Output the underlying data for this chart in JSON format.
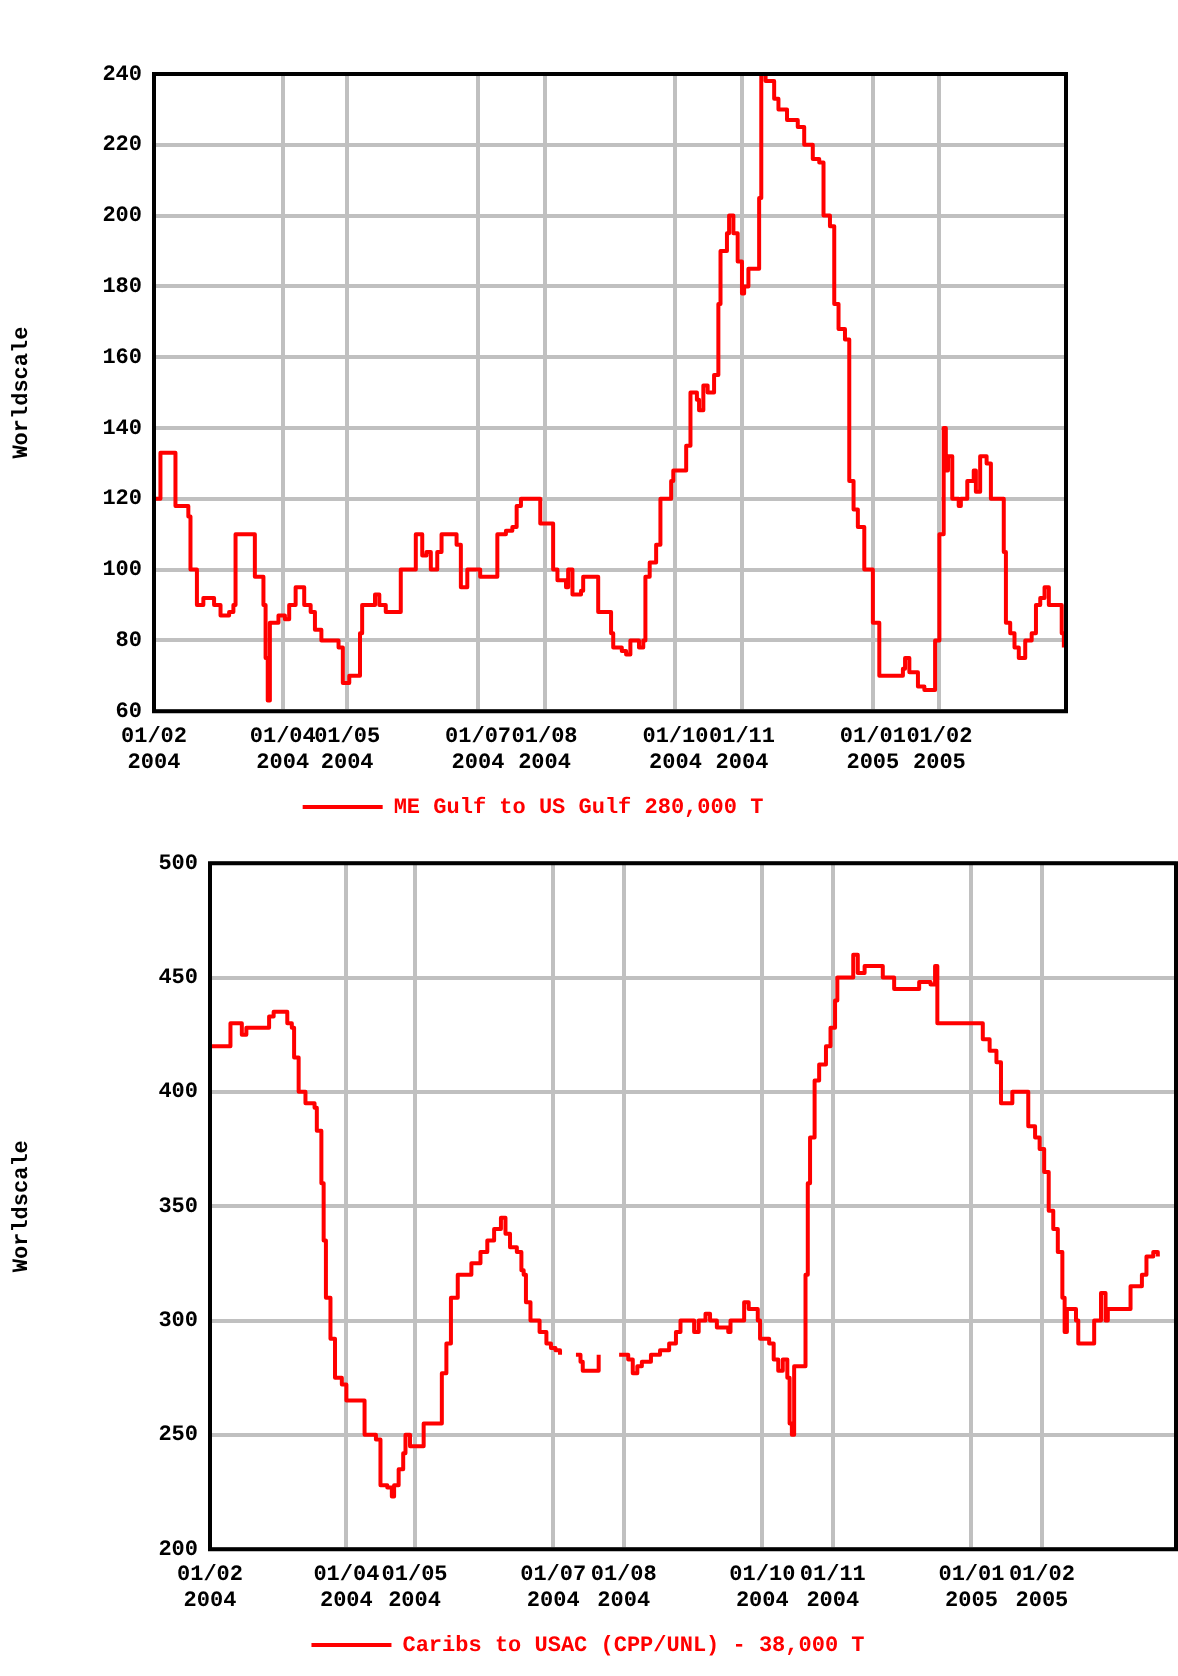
{
  "chart_data": [
    {
      "type": "step",
      "ylabel": "Worldscale",
      "legend": "bottom",
      "grid": true,
      "xlim": [
        "2004-02-01",
        "2005-04-01"
      ],
      "ylim": [
        60,
        240
      ],
      "yticks": [
        60,
        80,
        100,
        120,
        140,
        160,
        180,
        200,
        220,
        240
      ],
      "xticks": [
        {
          "value": "2004-02-01",
          "label": "01/02 2004"
        },
        {
          "value": "2004-04-01",
          "label": "01/04 2004"
        },
        {
          "value": "2004-05-01",
          "label": "01/05 2004"
        },
        {
          "value": "2004-07-01",
          "label": "01/07 2004"
        },
        {
          "value": "2004-08-01",
          "label": "01/08 2004"
        },
        {
          "value": "2004-10-01",
          "label": "01/10 2004"
        },
        {
          "value": "2004-11-01",
          "label": "01/11 2004"
        },
        {
          "value": "2005-01-01",
          "label": "01/01 2005"
        },
        {
          "value": "2005-02-01",
          "label": "01/02 2005"
        }
      ],
      "x": [
        "2004-02-01",
        "2004-02-04",
        "2004-02-11",
        "2004-02-17",
        "2004-02-18",
        "2004-02-21",
        "2004-02-24",
        "2004-02-29",
        "2004-03-03",
        "2004-03-07",
        "2004-03-09",
        "2004-03-10",
        "2004-03-17",
        "2004-03-19",
        "2004-03-23",
        "2004-03-24",
        "2004-03-25",
        "2004-03-26",
        "2004-03-30",
        "2004-04-02",
        "2004-04-04",
        "2004-04-07",
        "2004-04-11",
        "2004-04-14",
        "2004-04-16",
        "2004-04-19",
        "2004-04-25",
        "2004-04-27",
        "2004-04-29",
        "2004-05-02",
        "2004-05-06",
        "2004-05-07",
        "2004-05-08",
        "2004-05-12",
        "2004-05-14",
        "2004-05-16",
        "2004-05-19",
        "2004-05-24",
        "2004-05-26",
        "2004-05-31",
        "2004-06-02",
        "2004-06-05",
        "2004-06-07",
        "2004-06-09",
        "2004-06-12",
        "2004-06-14",
        "2004-06-18",
        "2004-06-21",
        "2004-06-23",
        "2004-06-26",
        "2004-07-01",
        "2004-07-02",
        "2004-07-08",
        "2004-07-10",
        "2004-07-14",
        "2004-07-17",
        "2004-07-19",
        "2004-07-21",
        "2004-07-27",
        "2004-07-30",
        "2004-08-03",
        "2004-08-05",
        "2004-08-07",
        "2004-08-11",
        "2004-08-12",
        "2004-08-14",
        "2004-08-18",
        "2004-08-19",
        "2004-08-24",
        "2004-08-26",
        "2004-08-30",
        "2004-09-01",
        "2004-09-02",
        "2004-09-06",
        "2004-09-08",
        "2004-09-10",
        "2004-09-14",
        "2004-09-16",
        "2004-09-17",
        "2004-09-19",
        "2004-09-22",
        "2004-09-24",
        "2004-09-29",
        "2004-09-30",
        "2004-10-05",
        "2004-10-06",
        "2004-10-08",
        "2004-10-11",
        "2004-10-12",
        "2004-10-14",
        "2004-10-16",
        "2004-10-19",
        "2004-10-21",
        "2004-10-22",
        "2004-10-24",
        "2004-10-25",
        "2004-10-26",
        "2004-10-28",
        "2004-10-30",
        "2004-11-01",
        "2004-11-02",
        "2004-11-04",
        "2004-11-08",
        "2004-11-09",
        "2004-11-10",
        "2004-11-12",
        "2004-11-16",
        "2004-11-18",
        "2004-11-22",
        "2004-11-27",
        "2004-11-30",
        "2004-12-04",
        "2004-12-07",
        "2004-12-09",
        "2004-12-12",
        "2004-12-14",
        "2004-12-16",
        "2004-12-19",
        "2004-12-21",
        "2004-12-23",
        "2004-12-25",
        "2004-12-28",
        "2005-01-01",
        "2005-01-04",
        "2005-01-11",
        "2005-01-15",
        "2005-01-16",
        "2005-01-18",
        "2005-01-22",
        "2005-01-25",
        "2005-01-28",
        "2005-01-30",
        "2005-02-01",
        "2005-02-03",
        "2005-02-04",
        "2005-02-05",
        "2005-02-07",
        "2005-02-10",
        "2005-02-11",
        "2005-02-14",
        "2005-02-17",
        "2005-02-18",
        "2005-02-20",
        "2005-02-23",
        "2005-02-25",
        "2005-03-01",
        "2005-03-03",
        "2005-03-04",
        "2005-03-06",
        "2005-03-08",
        "2005-03-10",
        "2005-03-13",
        "2005-03-16",
        "2005-03-18",
        "2005-03-20",
        "2005-03-22",
        "2005-03-24",
        "2005-03-29",
        "2005-03-30",
        "2005-03-31"
      ],
      "series": [
        {
          "name": "ME Gulf to US Gulf 280,000 T",
          "color": "#ff0000",
          "values": [
            120,
            133,
            118,
            115,
            100,
            90,
            92,
            90,
            87,
            88,
            90,
            110,
            110,
            98,
            90,
            75,
            63,
            85,
            87,
            86,
            90,
            95,
            90,
            88,
            83,
            80,
            80,
            78,
            68,
            70,
            70,
            82,
            90,
            90,
            93,
            90,
            88,
            88,
            100,
            100,
            110,
            104,
            105,
            100,
            105,
            110,
            110,
            107,
            95,
            100,
            100,
            98,
            98,
            110,
            111,
            112,
            118,
            120,
            120,
            113,
            113,
            100,
            97,
            95,
            100,
            93,
            94,
            98,
            98,
            88,
            88,
            82,
            78,
            77,
            76,
            80,
            78,
            80,
            98,
            102,
            107,
            120,
            125,
            128,
            128,
            135,
            150,
            148,
            145,
            152,
            150,
            155,
            175,
            190,
            190,
            195,
            200,
            195,
            187,
            178,
            180,
            185,
            185,
            205,
            240,
            238,
            233,
            230,
            227,
            225,
            220,
            216,
            215,
            200,
            197,
            175,
            168,
            165,
            125,
            117,
            112,
            100,
            85,
            70,
            70,
            72,
            75,
            71,
            67,
            66,
            66,
            80,
            110,
            140,
            128,
            132,
            120,
            118,
            120,
            125,
            128,
            122,
            132,
            130,
            120,
            120,
            105,
            85,
            82,
            78,
            75,
            80,
            82,
            90,
            92,
            95,
            90,
            90,
            82,
            78
          ]
        }
      ]
    },
    {
      "type": "step",
      "ylabel": "Worldscale",
      "legend": "bottom",
      "grid": true,
      "xlim": [
        "2004-02-01",
        "2005-04-01"
      ],
      "ylim": [
        200,
        500
      ],
      "yticks": [
        200,
        250,
        300,
        350,
        400,
        450,
        500
      ],
      "xticks": [
        {
          "value": "2004-02-01",
          "label": "01/02 2004"
        },
        {
          "value": "2004-04-01",
          "label": "01/04 2004"
        },
        {
          "value": "2004-05-01",
          "label": "01/05 2004"
        },
        {
          "value": "2004-07-01",
          "label": "01/07 2004"
        },
        {
          "value": "2004-08-01",
          "label": "01/08 2004"
        },
        {
          "value": "2004-10-01",
          "label": "01/10 2004"
        },
        {
          "value": "2004-11-01",
          "label": "01/11 2004"
        },
        {
          "value": "2005-01-01",
          "label": "01/01 2005"
        },
        {
          "value": "2005-02-01",
          "label": "01/02 2005"
        }
      ],
      "x": [
        "2004-02-01",
        "2004-02-09",
        "2004-02-10",
        "2004-02-13",
        "2004-02-15",
        "2004-02-17",
        "2004-02-21",
        "2004-02-25",
        "2004-02-27",
        "2004-02-29",
        "2004-03-04",
        "2004-03-06",
        "2004-03-08",
        "2004-03-09",
        "2004-03-11",
        "2004-03-14",
        "2004-03-18",
        "2004-03-19",
        "2004-03-21",
        "2004-03-22",
        "2004-03-23",
        "2004-03-25",
        "2004-03-27",
        "2004-03-30",
        "2004-04-01",
        "2004-04-08",
        "2004-04-09",
        "2004-04-14",
        "2004-04-16",
        "2004-04-19",
        "2004-04-21",
        "2004-04-22",
        "2004-04-24",
        "2004-04-26",
        "2004-04-27",
        "2004-04-29",
        "2004-05-04",
        "2004-05-05",
        "2004-05-12",
        "2004-05-13",
        "2004-05-15",
        "2004-05-17",
        "2004-05-20",
        "2004-05-25",
        "2004-05-26",
        "2004-05-30",
        "2004-06-02",
        "2004-06-05",
        "2004-06-08",
        "2004-06-10",
        "2004-06-12",
        "2004-06-15",
        "2004-06-17",
        "2004-06-18",
        "2004-06-19",
        "2004-06-21",
        "2004-06-25",
        "2004-06-28",
        "2004-06-30",
        "2004-07-02",
        "2004-07-04",
        "2004-07-08",
        "2004-07-11",
        "2004-07-13",
        "2004-07-14",
        "2004-07-19",
        "2004-07-21",
        "2004-07-25",
        "2004-07-30",
        "2004-08-03",
        "2004-08-05",
        "2004-08-07",
        "2004-08-09",
        "2004-08-13",
        "2004-08-17",
        "2004-08-21",
        "2004-08-24",
        "2004-08-26",
        "2004-08-30",
        "2004-09-01",
        "2004-09-03",
        "2004-09-06",
        "2004-09-08",
        "2004-09-11",
        "2004-09-16",
        "2004-09-17",
        "2004-09-22",
        "2004-09-23",
        "2004-09-25",
        "2004-09-29",
        "2004-09-30",
        "2004-10-04",
        "2004-10-06",
        "2004-10-08",
        "2004-10-10",
        "2004-10-12",
        "2004-10-13",
        "2004-10-14",
        "2004-10-15",
        "2004-10-18",
        "2004-10-20",
        "2004-10-21",
        "2004-10-22",
        "2004-10-24",
        "2004-10-26",
        "2004-10-29",
        "2004-10-31",
        "2004-11-02",
        "2004-11-03",
        "2004-11-08",
        "2004-11-10",
        "2004-11-12",
        "2004-11-15",
        "2004-11-20",
        "2004-11-23",
        "2004-11-28",
        "2004-12-08",
        "2004-12-09",
        "2004-12-14",
        "2004-12-16",
        "2004-12-17",
        "2005-01-04",
        "2005-01-06",
        "2005-01-09",
        "2005-01-12",
        "2005-01-14",
        "2005-01-17",
        "2005-01-19",
        "2005-01-22",
        "2005-01-26",
        "2005-01-29",
        "2005-01-31",
        "2005-02-02",
        "2005-02-04",
        "2005-02-06",
        "2005-02-08",
        "2005-02-10",
        "2005-02-11",
        "2005-02-12",
        "2005-02-16",
        "2005-02-17",
        "2005-02-22",
        "2005-02-24",
        "2005-02-27",
        "2005-03-01",
        "2005-03-02",
        "2005-03-09",
        "2005-03-12",
        "2005-03-17",
        "2005-03-19",
        "2005-03-22",
        "2005-03-24"
      ],
      "series": [
        {
          "name": "Caribs to USAC (CPP/UNL) - 38,000 T",
          "color": "#ff0000",
          "values": [
            420,
            420,
            430,
            430,
            425,
            428,
            428,
            428,
            433,
            435,
            435,
            430,
            428,
            415,
            400,
            395,
            393,
            383,
            360,
            335,
            310,
            292,
            275,
            272,
            265,
            265,
            250,
            248,
            228,
            227,
            223,
            228,
            235,
            242,
            250,
            245,
            245,
            255,
            255,
            277,
            290,
            310,
            320,
            320,
            325,
            330,
            335,
            340,
            345,
            338,
            332,
            330,
            322,
            320,
            308,
            300,
            295,
            290,
            288,
            287,
            285,
            null,
            285,
            282,
            278,
            278,
            285,
            null,
            285,
            283,
            277,
            280,
            282,
            285,
            287,
            290,
            295,
            300,
            300,
            295,
            300,
            303,
            300,
            297,
            295,
            300,
            300,
            308,
            305,
            300,
            292,
            290,
            283,
            278,
            283,
            275,
            255,
            250,
            280,
            280,
            320,
            360,
            380,
            405,
            412,
            420,
            428,
            440,
            450,
            450,
            460,
            452,
            455,
            455,
            450,
            445,
            445,
            448,
            447,
            455,
            430,
            430,
            423,
            418,
            413,
            395,
            395,
            400,
            400,
            385,
            380,
            375,
            365,
            348,
            340,
            330,
            310,
            295,
            305,
            300,
            290,
            290,
            300,
            312,
            300,
            305,
            305,
            315,
            320,
            328,
            330,
            328
          ]
        }
      ]
    }
  ]
}
